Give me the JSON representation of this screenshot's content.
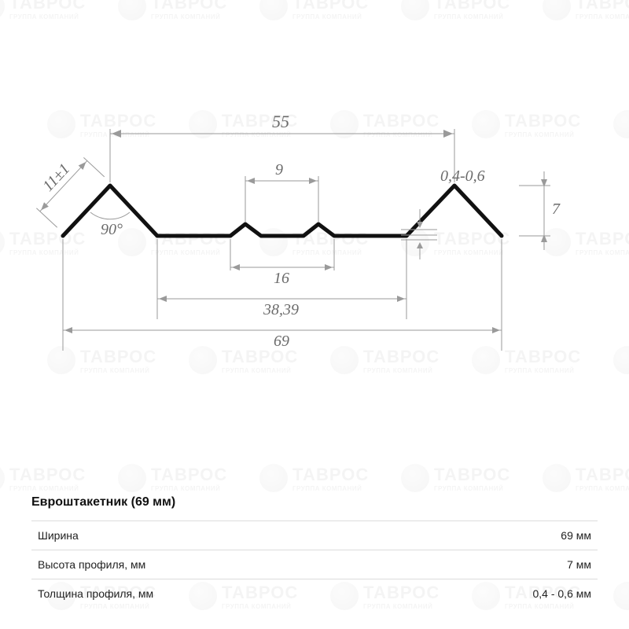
{
  "background_color": "#ffffff",
  "watermark": {
    "text_main": "ТАВРОС",
    "text_sub": "ГРУППА КОМПАНИЙ",
    "color": "#c8c8c8",
    "opacity": 0.18
  },
  "diagram": {
    "type": "engineering-profile-dimensioned",
    "profile_color": "#111111",
    "profile_stroke_width": 5,
    "dimline_color": "#9a9a9a",
    "dim_text_color": "#6b6b6b",
    "dim_fontsize": 20,
    "dims": {
      "top_span": "55",
      "slope_len": "11±1",
      "mid_top_small": "9",
      "thickness": "0,4-0,6",
      "height_right": "7",
      "angle": "90°",
      "mid_bottom_small": "16",
      "flat_span": "38,39",
      "overall": "69"
    }
  },
  "spec": {
    "title": "Евроштакетник (69 мм)",
    "rows": [
      {
        "label": "Ширина",
        "value": "69 мм"
      },
      {
        "label": "Высота профиля, мм",
        "value": "7 мм"
      },
      {
        "label": "Толщина профиля, мм",
        "value": "0,4 - 0,6 мм"
      }
    ],
    "title_fontsize": 16,
    "row_fontsize": 14,
    "border_color": "#dcdcdc"
  }
}
